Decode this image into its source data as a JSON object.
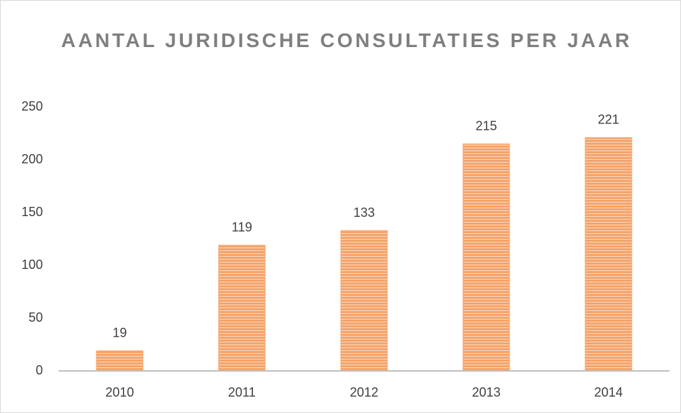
{
  "chart_data": {
    "type": "bar",
    "title": "AANTAL JURIDISCHE CONSULTATIES PER JAAR",
    "categories": [
      "2010",
      "2011",
      "2012",
      "2013",
      "2014"
    ],
    "values": [
      19,
      119,
      133,
      215,
      221
    ],
    "color": "#f4a46c",
    "ylim": [
      0,
      250
    ],
    "yticks": [
      0,
      50,
      100,
      150,
      200,
      250
    ],
    "grid": false
  }
}
